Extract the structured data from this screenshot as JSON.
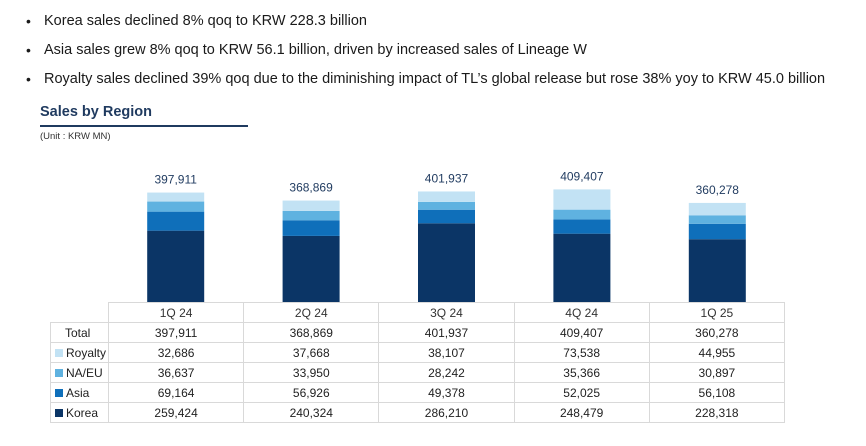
{
  "bullets": [
    "Korea sales declined 8% qoq to KRW 228.3 billion",
    "Asia sales grew 8% qoq to KRW 56.1 billion, driven by increased sales of Lineage W",
    "Royalty sales declined 39% qoq due to the diminishing impact of TL’s global release but rose 38% yoy to KRW 45.0 billion"
  ],
  "section_title": "Sales by Region",
  "unit": "(Unit : KRW MN)",
  "total_label": "Total",
  "chart_data": {
    "type": "bar",
    "stacked": true,
    "categories": [
      "1Q 24",
      "2Q 24",
      "3Q 24",
      "4Q 24",
      "1Q 25"
    ],
    "totals": [
      397911,
      368869,
      401937,
      409407,
      360278
    ],
    "total_labels": [
      "397,911",
      "368,869",
      "401,937",
      "409,407",
      "360,278"
    ],
    "ylim": [
      0,
      420000
    ],
    "legend": "table-left",
    "series": [
      {
        "name": "Korea",
        "color": "#0b3566",
        "values": [
          259424,
          240324,
          286210,
          248479,
          228318
        ],
        "labels": [
          "259,424",
          "240,324",
          "286,210",
          "248,479",
          "228,318"
        ]
      },
      {
        "name": "Asia",
        "color": "#0f6fba",
        "values": [
          69164,
          56926,
          49378,
          52025,
          56108
        ],
        "labels": [
          "69,164",
          "56,926",
          "49,378",
          "52,025",
          "56,108"
        ]
      },
      {
        "name": "NA/EU",
        "color": "#5fb2e0",
        "values": [
          36637,
          33950,
          28242,
          35366,
          30897
        ],
        "labels": [
          "36,637",
          "33,950",
          "28,242",
          "35,366",
          "30,897"
        ]
      },
      {
        "name": "Royalty",
        "color": "#c2e2f4",
        "values": [
          32686,
          37668,
          38107,
          73538,
          44955
        ],
        "labels": [
          "32,686",
          "37,668",
          "38,107",
          "73,538",
          "44,955"
        ]
      }
    ]
  }
}
